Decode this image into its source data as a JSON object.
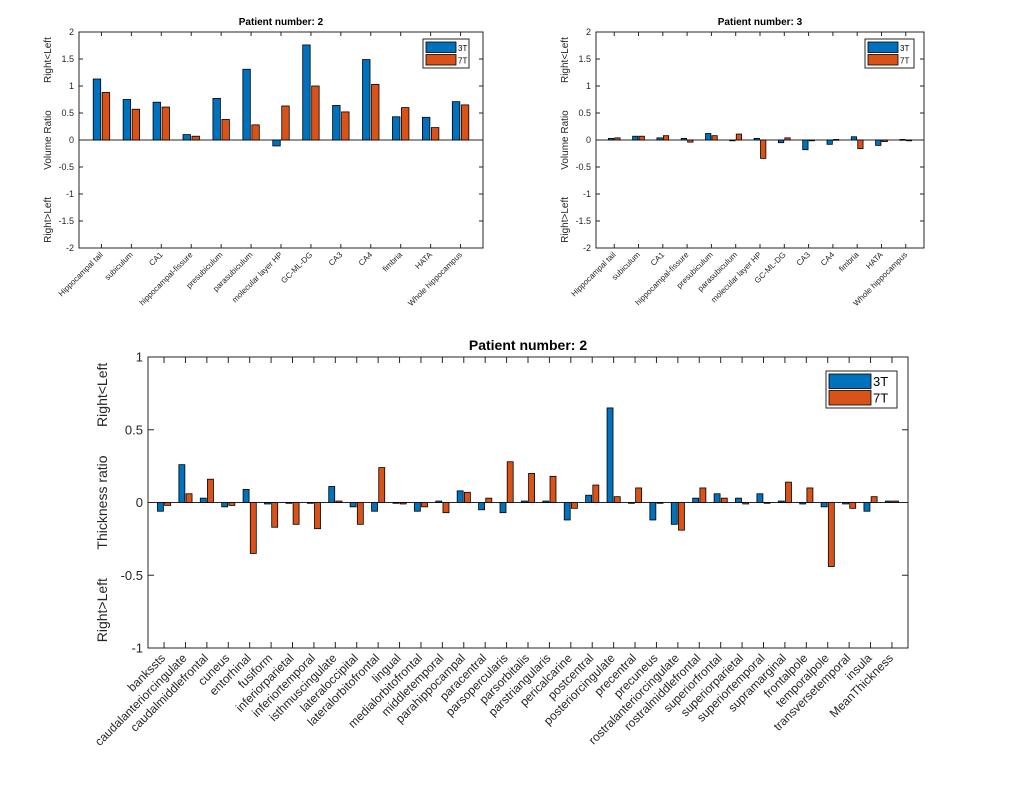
{
  "colors": {
    "series_3T": "#0072BD",
    "series_7T": "#D95319"
  },
  "chart_data": [
    {
      "id": "top-left",
      "type": "bar",
      "title": "Patient number: 2",
      "ylabel": "Volume Ratio",
      "ylabel_upper": "Right<Left",
      "ylabel_lower": "Right>Left",
      "xlabel": "",
      "ylim": [
        -2,
        2
      ],
      "yticks": [
        2,
        1.5,
        1,
        0.5,
        0,
        -0.5,
        -1,
        -1.5,
        -2
      ],
      "ytick_labels": [
        "2",
        "1.5",
        "1",
        "0.5",
        "0",
        "-0.5",
        "-1",
        "-1.5",
        "-2"
      ],
      "legend": {
        "entries": [
          "3T",
          "7T"
        ],
        "position": "top-right"
      },
      "categories": [
        "Hippocampal tail",
        "subiculum",
        "CA1",
        "hippocampal-fissure",
        "presubiculum",
        "parasubiculum",
        "molecular layer HP",
        "GC-ML-DG",
        "CA3",
        "CA4",
        "fimbria",
        "HATA",
        "Whole hippocampus"
      ],
      "series": [
        {
          "name": "3T",
          "values": [
            1.13,
            0.75,
            0.7,
            0.1,
            0.77,
            1.31,
            -0.11,
            1.76,
            0.64,
            1.49,
            0.43,
            0.42,
            0.71
          ]
        },
        {
          "name": "7T",
          "values": [
            0.88,
            0.57,
            0.61,
            0.07,
            0.38,
            0.28,
            0.63,
            1.0,
            0.52,
            1.03,
            0.6,
            0.23,
            0.65
          ]
        }
      ]
    },
    {
      "id": "top-right",
      "type": "bar",
      "title": "Patient number: 3",
      "ylabel": "Volume Ratio",
      "ylabel_upper": "Right<Left",
      "ylabel_lower": "Right>Left",
      "xlabel": "",
      "ylim": [
        -2,
        2
      ],
      "yticks": [
        2,
        1.5,
        1,
        0.5,
        0,
        -0.5,
        -1,
        -1.5,
        -2
      ],
      "ytick_labels": [
        "2",
        "1.5",
        "1",
        "0.5",
        "0",
        "-0.5",
        "-1",
        "-1.5",
        "-2"
      ],
      "legend": {
        "entries": [
          "3T",
          "7T"
        ],
        "position": "top-right"
      },
      "categories": [
        "Hippocampal tail",
        "subiculum",
        "CA1",
        "hippocampal-fissure",
        "presubiculum",
        "parasubiculum",
        "molecular layer HP",
        "GC-ML-DG",
        "CA3",
        "CA4",
        "fimbria",
        "HATA",
        "Whole hippocampus"
      ],
      "series": [
        {
          "name": "3T",
          "values": [
            0.03,
            0.07,
            0.04,
            0.03,
            0.12,
            -0.01,
            0.03,
            -0.05,
            -0.18,
            -0.08,
            0.06,
            -0.1,
            0.01
          ]
        },
        {
          "name": "7T",
          "values": [
            0.04,
            0.07,
            0.08,
            -0.04,
            0.08,
            0.11,
            -0.34,
            0.04,
            0.0,
            0.01,
            -0.16,
            -0.03,
            -0.01
          ]
        }
      ]
    },
    {
      "id": "bottom",
      "type": "bar",
      "title": "Patient number: 2",
      "ylabel": "Thickness ratio",
      "ylabel_upper": "Right<Left",
      "ylabel_lower": "Right>Left",
      "xlabel": "",
      "ylim": [
        -1,
        1
      ],
      "yticks": [
        1,
        0.5,
        0,
        -0.5,
        -1
      ],
      "ytick_labels": [
        "1",
        "0.5",
        "0",
        "-0.5",
        "-1"
      ],
      "legend": {
        "entries": [
          "3T",
          "7T"
        ],
        "position": "top-right"
      },
      "categories": [
        "bankssts",
        "caudalanteriorcingulate",
        "caudalmiddlefrontal",
        "cuneus",
        "entorhinal",
        "fusiform",
        "inferiorparietal",
        "inferiortemporal",
        "isthmuscingulate",
        "lateraloccipital",
        "lateralorbitofrontal",
        "lingual",
        "medialorbitofrontal",
        "middletemporal",
        "parahippocampal",
        "paracentral",
        "parsopercularis",
        "parsorbitalis",
        "parstriangularis",
        "pericalcarine",
        "postcentral",
        "posteriorcingulate",
        "precentral",
        "precuneus",
        "rostralanteriorcingulate",
        "rostralmiddlefrontal",
        "superiorfrontal",
        "superiorparietal",
        "superiortemporal",
        "supramarginal",
        "frontalpole",
        "temporalpole",
        "transversetemporal",
        "insula",
        "MeanThickness"
      ],
      "series": [
        {
          "name": "3T",
          "values": [
            -0.06,
            0.26,
            0.03,
            -0.03,
            0.09,
            -0.01,
            0.0,
            0.0,
            0.11,
            -0.03,
            -0.06,
            0.0,
            -0.06,
            0.01,
            0.08,
            -0.05,
            -0.07,
            0.01,
            0.01,
            -0.12,
            0.05,
            0.65,
            0.0,
            -0.12,
            -0.15,
            0.03,
            0.06,
            0.03,
            0.06,
            0.01,
            -0.01,
            -0.03,
            -0.01,
            -0.06,
            0.01
          ]
        },
        {
          "name": "7T",
          "values": [
            -0.02,
            0.06,
            0.16,
            -0.02,
            -0.35,
            -0.17,
            -0.15,
            -0.18,
            0.01,
            -0.15,
            0.24,
            -0.01,
            -0.03,
            -0.07,
            0.07,
            0.03,
            0.28,
            0.2,
            0.18,
            -0.04,
            0.12,
            0.04,
            0.1,
            0.0,
            -0.19,
            0.1,
            0.03,
            -0.01,
            0.0,
            0.14,
            0.1,
            -0.44,
            -0.04,
            0.04,
            0.01
          ]
        }
      ]
    }
  ]
}
